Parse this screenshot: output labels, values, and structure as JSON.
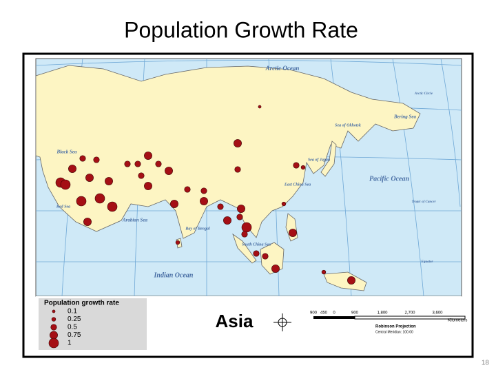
{
  "header": {
    "title": "Population Growth Rate",
    "slide_number": "18"
  },
  "map": {
    "name": "Asia",
    "labels": [
      "Arctic Ocean",
      "Arctic Circle",
      "Bering Sea",
      "Sea of Okhotsk",
      "Black Sea",
      "Red Sea",
      "Arabian Sea",
      "Bay of Bengal",
      "South China Sea",
      "Sea of Japan",
      "East China Sea",
      "Pacific Ocean",
      "Tropic of Cancer",
      "Equator",
      "Indian Ocean"
    ],
    "growth_rates": [
      0.1,
      0.75,
      0.5,
      0.75,
      0.5,
      0.5,
      0.5,
      0.5,
      0.5,
      0.75,
      0.75,
      1,
      1,
      0.75,
      0.5,
      0.75,
      0.75,
      0.5,
      0.5,
      1,
      1,
      1,
      0.75,
      0.75,
      0.75,
      0.5,
      0.75,
      0.5,
      0.75,
      1,
      0.5,
      0.25,
      0.75,
      0.5,
      0.25,
      0.25,
      0.5,
      0.5,
      0.75,
      0.75,
      0.25
    ],
    "legend": {
      "title": "Population growth rate",
      "entries": [
        0.1,
        0.25,
        0.5,
        0.75,
        1
      ]
    },
    "scale_bar": {
      "ticks": [
        "900",
        "450",
        "0",
        "900",
        "1,800",
        "2,700",
        "3,600"
      ],
      "unit": "Kilometers"
    },
    "projection": "Robinson Projection",
    "central_meridian": "Central Meridian: 100.00"
  }
}
